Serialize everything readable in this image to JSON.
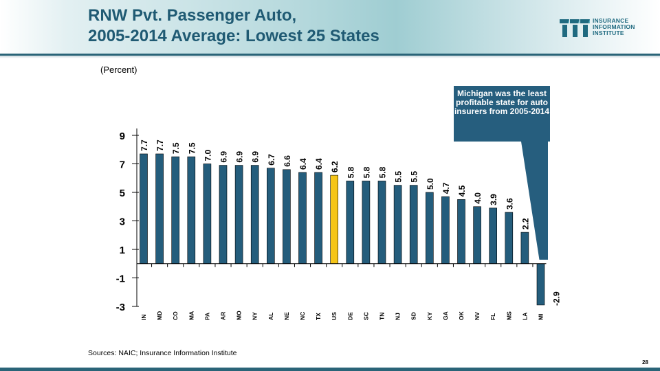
{
  "header": {
    "title_line1": "RNW Pvt. Passenger Auto,",
    "title_line2": "2005-2014 Average: Lowest 25 States",
    "logo": {
      "icon": "iii-logo-icon",
      "line1": "INSURANCE",
      "line2": "INFORMATION",
      "line3": "INSTITUTE"
    }
  },
  "subtitle": "(Percent)",
  "callout": {
    "text": "Michigan was the least profitable state for auto insurers from 2005-2014",
    "target": "MI"
  },
  "footer": {
    "source": "Sources: NAIC; Insurance Information Institute",
    "page_number": "28"
  },
  "colors": {
    "bar": "#245d7c",
    "highlight_bar": "#f5c518",
    "title": "#1f5a73",
    "callout": "#265e7e",
    "rule": "#2a6478"
  },
  "chart_data": {
    "type": "bar",
    "title": "RNW Pvt. Passenger Auto, 2005-2014 Average: Lowest 25 States",
    "ylabel": "(Percent)",
    "xlabel": "",
    "ylim": [
      -3,
      9
    ],
    "yticks": [
      9,
      7,
      5,
      3,
      1,
      -1,
      -3
    ],
    "grid": false,
    "categories": [
      "IN",
      "MD",
      "CO",
      "MA",
      "PA",
      "AR",
      "MO",
      "NY",
      "AL",
      "NE",
      "NC",
      "TX",
      "US",
      "DE",
      "SC",
      "TN",
      "NJ",
      "SD",
      "KY",
      "GA",
      "OK",
      "NV",
      "FL",
      "MS",
      "LA",
      "MI"
    ],
    "values": [
      7.7,
      7.7,
      7.5,
      7.5,
      7.0,
      6.9,
      6.9,
      6.9,
      6.7,
      6.6,
      6.4,
      6.4,
      6.2,
      5.8,
      5.8,
      5.8,
      5.5,
      5.5,
      5.0,
      4.7,
      4.5,
      4.0,
      3.9,
      3.6,
      2.2,
      -2.9
    ],
    "data_labels": [
      "7.7",
      "7.7",
      "7.5",
      "7.5",
      "7.0",
      "6.9",
      "6.9",
      "6.9",
      "6.7",
      "6.6",
      "6.4",
      "6.4",
      "6.2",
      "5.8",
      "5.8",
      "5.8",
      "5.5",
      "5.5",
      "5.0",
      "4.7",
      "4.5",
      "4.0",
      "3.9",
      "3.6",
      "2.2",
      "-2.9"
    ],
    "highlight": "US"
  }
}
